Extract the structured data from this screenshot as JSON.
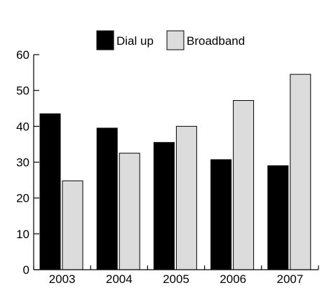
{
  "chart_data": {
    "type": "bar",
    "categories": [
      "2003",
      "2004",
      "2005",
      "2006",
      "2007"
    ],
    "series": [
      {
        "name": "Dial up",
        "color": "#000000",
        "values": [
          43.5,
          39.5,
          35.5,
          30.7,
          29
        ]
      },
      {
        "name": "Broadband",
        "color": "#dcdcdc",
        "values": [
          24.8,
          32.5,
          40,
          47.2,
          54.5
        ]
      }
    ],
    "title": "",
    "xlabel": "",
    "ylabel": "",
    "ylim": [
      0,
      60
    ],
    "yticks": [
      0,
      10,
      20,
      30,
      40,
      50,
      60
    ],
    "grid": false,
    "legend_position": "top"
  }
}
